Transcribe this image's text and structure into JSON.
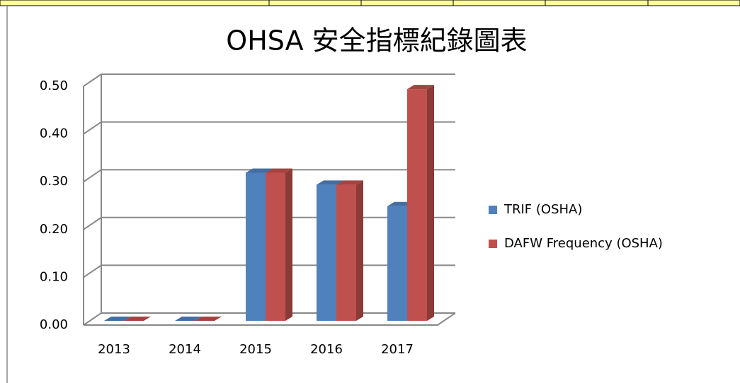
{
  "chart_data": {
    "type": "bar",
    "title": "OHSA 安全指標紀錄圖表",
    "categories": [
      "2013",
      "2014",
      "2015",
      "2016",
      "2017"
    ],
    "series": [
      {
        "name": "TRIF (OSHA)",
        "color": "#4f81bd",
        "values": [
          0,
          0,
          0.31,
          0.285,
          0.24
        ]
      },
      {
        "name": "DAFW Frequency (OSHA)",
        "color": "#c0504d",
        "values": [
          0,
          0,
          0.31,
          0.285,
          0.485
        ]
      }
    ],
    "ylim": [
      0,
      0.5
    ],
    "yticks": [
      {
        "value": 0,
        "label": "0.00"
      },
      {
        "value": 0.1,
        "label": "0.10"
      },
      {
        "value": 0.2,
        "label": "0.20"
      },
      {
        "value": 0.3,
        "label": "0.30"
      },
      {
        "value": 0.4,
        "label": "0.40"
      },
      {
        "value": 0.5,
        "label": "0.50"
      }
    ],
    "grid": true,
    "legend": "right"
  }
}
